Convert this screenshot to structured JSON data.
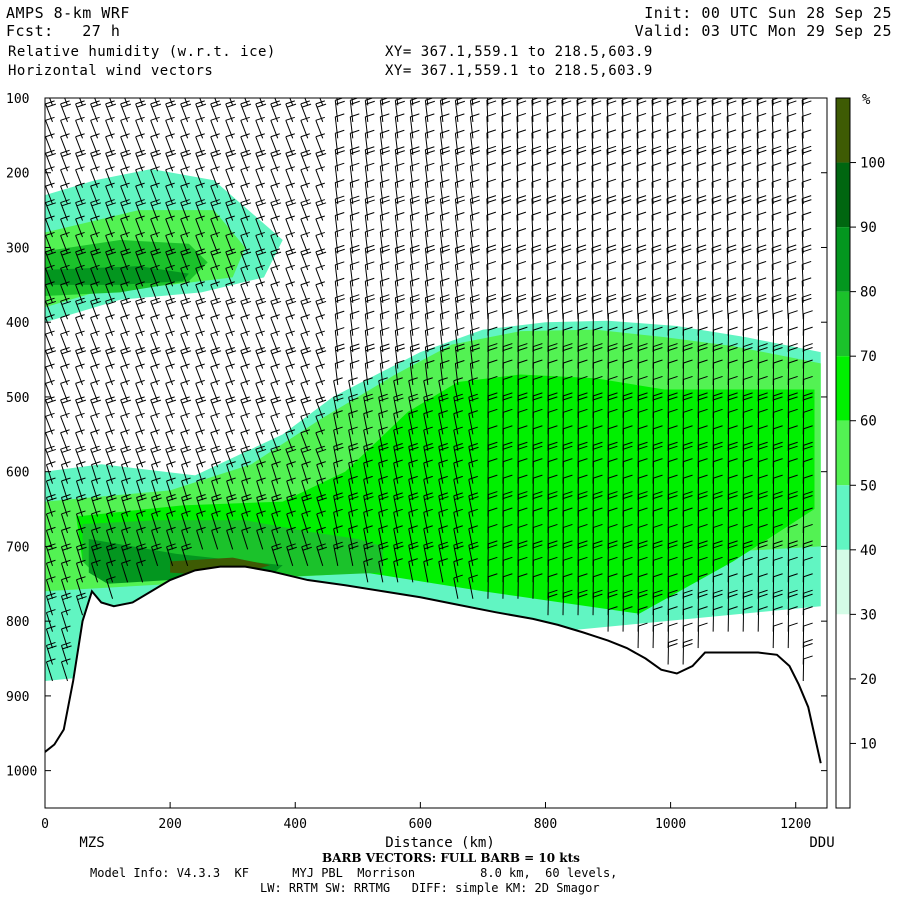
{
  "header": {
    "model": "AMPS 8-km WRF",
    "forecast": "Fcst:   27 h",
    "field1": "Relative humidity (w.r.t. ice)",
    "field2": "Horizontal wind vectors",
    "init": "Init: 00 UTC Sun 28 Sep 25",
    "valid": "Valid: 03 UTC Mon 29 Sep 25",
    "xy1": "XY= 367.1,559.1 to 218.5,603.9",
    "xy2": "XY= 367.1,559.1 to 218.5,603.9"
  },
  "footer": {
    "barb_note": "BARB VECTORS: FULL BARB = 10 kts",
    "model_info": "Model Info: V4.3.3  KF      MYJ PBL  Morrison         8.0 km,  60 levels,",
    "physics": "LW: RRTM SW: RRTMG   DIFF: simple KM: 2D Smagor"
  },
  "chart_data": {
    "type": "heatmap",
    "title": "Relative humidity (w.r.t. ice)",
    "xlabel": "Distance (km)",
    "ylabel": "",
    "x_range": [
      0,
      1250
    ],
    "y_range": [
      100,
      1050
    ],
    "y_scale": "linear (pressure, hPa, increasing downward)",
    "x_ticks": [
      0,
      200,
      400,
      600,
      800,
      1000,
      1200
    ],
    "y_ticks": [
      100,
      200,
      300,
      400,
      500,
      600,
      700,
      800,
      900,
      1000
    ],
    "endpoints": {
      "left": "MZS",
      "right": "DDU"
    },
    "colorbar": {
      "unit": "%",
      "levels": [
        10,
        20,
        30,
        40,
        50,
        60,
        70,
        80,
        90,
        100
      ],
      "colors": [
        "#ffffff",
        "#ffffff",
        "#ffffff",
        "#d4fce7",
        "#61f5c2",
        "#53f253",
        "#00f000",
        "#1bc22b",
        "#03961f",
        "#006610",
        "#3e5b04"
      ]
    },
    "terrain_surface": [
      {
        "x": 0,
        "p": 975
      },
      {
        "x": 15,
        "p": 965
      },
      {
        "x": 30,
        "p": 945
      },
      {
        "x": 45,
        "p": 880
      },
      {
        "x": 60,
        "p": 800
      },
      {
        "x": 75,
        "p": 760
      },
      {
        "x": 90,
        "p": 775
      },
      {
        "x": 110,
        "p": 780
      },
      {
        "x": 140,
        "p": 775
      },
      {
        "x": 170,
        "p": 760
      },
      {
        "x": 200,
        "p": 745
      },
      {
        "x": 240,
        "p": 732
      },
      {
        "x": 280,
        "p": 727
      },
      {
        "x": 320,
        "p": 727
      },
      {
        "x": 360,
        "p": 733
      },
      {
        "x": 420,
        "p": 745
      },
      {
        "x": 480,
        "p": 752
      },
      {
        "x": 540,
        "p": 760
      },
      {
        "x": 600,
        "p": 768
      },
      {
        "x": 660,
        "p": 778
      },
      {
        "x": 720,
        "p": 788
      },
      {
        "x": 780,
        "p": 797
      },
      {
        "x": 820,
        "p": 805
      },
      {
        "x": 860,
        "p": 815
      },
      {
        "x": 900,
        "p": 826
      },
      {
        "x": 930,
        "p": 836
      },
      {
        "x": 960,
        "p": 850
      },
      {
        "x": 985,
        "p": 865
      },
      {
        "x": 1010,
        "p": 870
      },
      {
        "x": 1035,
        "p": 860
      },
      {
        "x": 1055,
        "p": 842
      },
      {
        "x": 1080,
        "p": 842
      },
      {
        "x": 1110,
        "p": 842
      },
      {
        "x": 1140,
        "p": 842
      },
      {
        "x": 1170,
        "p": 845
      },
      {
        "x": 1190,
        "p": 860
      },
      {
        "x": 1205,
        "p": 885
      },
      {
        "x": 1220,
        "p": 915
      },
      {
        "x": 1232,
        "p": 960
      },
      {
        "x": 1240,
        "p": 990
      }
    ],
    "rh_regions": [
      {
        "level": "40-50",
        "polygon": [
          [
            0,
            230
          ],
          [
            80,
            210
          ],
          [
            170,
            195
          ],
          [
            270,
            210
          ],
          [
            380,
            290
          ],
          [
            350,
            340
          ],
          [
            250,
            360
          ],
          [
            120,
            370
          ],
          [
            0,
            400
          ]
        ]
      },
      {
        "level": "50-60",
        "polygon": [
          [
            0,
            280
          ],
          [
            150,
            250
          ],
          [
            270,
            250
          ],
          [
            320,
            300
          ],
          [
            300,
            340
          ],
          [
            200,
            350
          ],
          [
            80,
            360
          ],
          [
            0,
            380
          ]
        ]
      },
      {
        "level": "80-90",
        "polygon": [
          [
            0,
            305
          ],
          [
            120,
            290
          ],
          [
            230,
            295
          ],
          [
            260,
            320
          ],
          [
            230,
            345
          ],
          [
            120,
            360
          ],
          [
            0,
            365
          ]
        ]
      },
      {
        "level": "90-100",
        "polygon": [
          [
            0,
            330
          ],
          [
            150,
            325
          ],
          [
            230,
            335
          ],
          [
            220,
            345
          ],
          [
            120,
            350
          ],
          [
            0,
            350
          ]
        ]
      },
      {
        "level": "40-50",
        "polygon": [
          [
            0,
            600
          ],
          [
            90,
            590
          ],
          [
            240,
            605
          ],
          [
            380,
            550
          ],
          [
            460,
            500
          ],
          [
            600,
            440
          ],
          [
            700,
            410
          ],
          [
            800,
            400
          ],
          [
            900,
            398
          ],
          [
            1010,
            405
          ],
          [
            1120,
            420
          ],
          [
            1240,
            440
          ],
          [
            1240,
            780
          ],
          [
            0,
            880
          ]
        ]
      },
      {
        "level": "50-60",
        "polygon": [
          [
            0,
            640
          ],
          [
            200,
            625
          ],
          [
            330,
            590
          ],
          [
            440,
            530
          ],
          [
            560,
            470
          ],
          [
            650,
            430
          ],
          [
            760,
            412
          ],
          [
            880,
            410
          ],
          [
            990,
            420
          ],
          [
            1100,
            432
          ],
          [
            1240,
            455
          ],
          [
            1240,
            700
          ],
          [
            0,
            760
          ]
        ]
      },
      {
        "level": "70-80",
        "polygon": [
          [
            50,
            660
          ],
          [
            220,
            645
          ],
          [
            380,
            640
          ],
          [
            480,
            600
          ],
          [
            580,
            520
          ],
          [
            660,
            480
          ],
          [
            760,
            470
          ],
          [
            880,
            475
          ],
          [
            990,
            490
          ],
          [
            1100,
            490
          ],
          [
            1230,
            490
          ],
          [
            1230,
            650
          ],
          [
            1100,
            720
          ],
          [
            950,
            790
          ],
          [
            700,
            760
          ],
          [
            400,
            720
          ],
          [
            150,
            740
          ],
          [
            60,
            720
          ]
        ]
      },
      {
        "level": "80-90",
        "polygon": [
          [
            60,
            670
          ],
          [
            180,
            665
          ],
          [
            320,
            665
          ],
          [
            420,
            680
          ],
          [
            500,
            690
          ],
          [
            540,
            700
          ],
          [
            540,
            735
          ],
          [
            400,
            740
          ],
          [
            200,
            740
          ],
          [
            90,
            745
          ],
          [
            60,
            720
          ]
        ]
      },
      {
        "level": "90-100",
        "polygon": [
          [
            70,
            690
          ],
          [
            140,
            700
          ],
          [
            210,
            710
          ],
          [
            320,
            720
          ],
          [
            380,
            725
          ],
          [
            360,
            740
          ],
          [
            200,
            745
          ],
          [
            100,
            750
          ],
          [
            70,
            735
          ]
        ]
      },
      {
        "level": ">100",
        "polygon": [
          [
            200,
            720
          ],
          [
            300,
            715
          ],
          [
            360,
            725
          ],
          [
            300,
            740
          ],
          [
            200,
            735
          ]
        ]
      }
    ],
    "wind_barbs_kts": "full barb = 10 kts; wind barbs plotted on a regular grid at roughly 25 km by 25 hPa spacing"
  }
}
